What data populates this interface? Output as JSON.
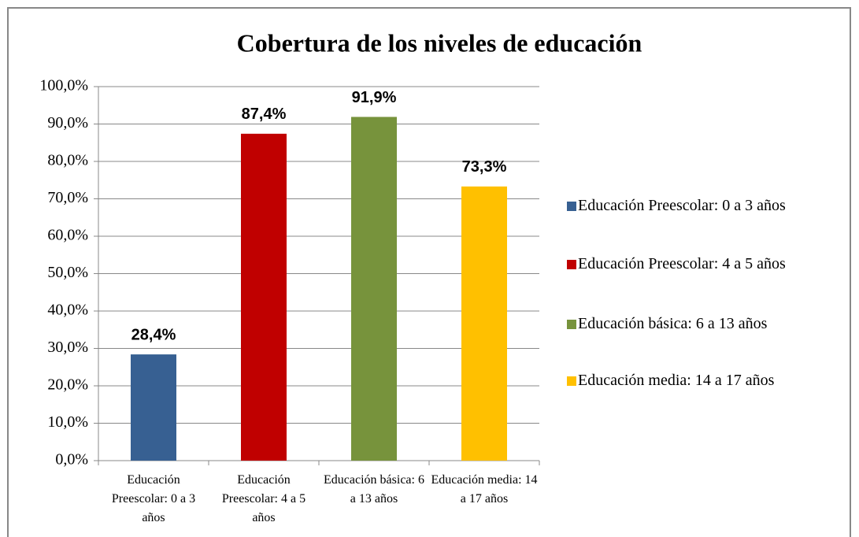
{
  "chart_data": {
    "type": "bar",
    "title": "Cobertura de los niveles de educación",
    "categories": [
      "Educación Preescolar: 0 a 3 años",
      "Educación Preescolar: 4 a 5 años",
      "Educación básica: 6 a 13 años",
      "Educación media: 14 a 17 años"
    ],
    "values": [
      28.4,
      87.4,
      91.9,
      73.3
    ],
    "value_labels": [
      "28,4%",
      "87,4%",
      "91,9%",
      "73,3%"
    ],
    "colors": [
      "#376092",
      "#c00000",
      "#77933c",
      "#ffc000"
    ],
    "ylim": [
      0,
      100
    ],
    "yticks": [
      {
        "value": 0,
        "label": "0,0%"
      },
      {
        "value": 10,
        "label": "10,0%"
      },
      {
        "value": 20,
        "label": "20,0%"
      },
      {
        "value": 30,
        "label": "30,0%"
      },
      {
        "value": 40,
        "label": "40,0%"
      },
      {
        "value": 50,
        "label": "50,0%"
      },
      {
        "value": 60,
        "label": "60,0%"
      },
      {
        "value": 70,
        "label": "70,0%"
      },
      {
        "value": 80,
        "label": "80,0%"
      },
      {
        "value": 90,
        "label": "90,0%"
      },
      {
        "value": 100,
        "label": "100,0%"
      }
    ],
    "grid": true,
    "legend": "right"
  }
}
